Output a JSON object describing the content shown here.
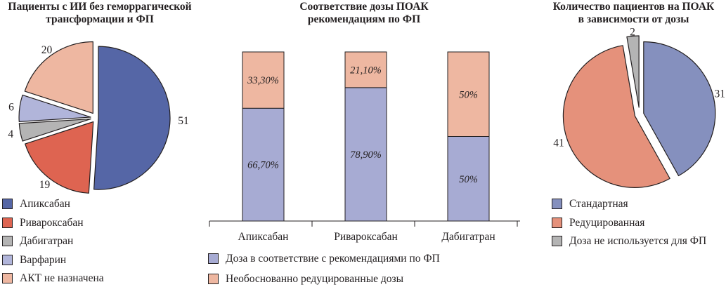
{
  "chart_data": [
    {
      "type": "pie",
      "title": [
        "Пациенты с ИИ без геморрагической",
        "трансформации и ФП"
      ],
      "categories": [
        "Апиксабан",
        "Ривароксабан",
        "Дабигатран",
        "Варфарин",
        "АКТ не назначена"
      ],
      "values": [
        51,
        19,
        4,
        6,
        20
      ],
      "labels": [
        "51",
        "19",
        "4",
        "6",
        "20"
      ],
      "colors": [
        "#5566a6",
        "#de6451",
        "#b4b4b4",
        "#b1b5da",
        "#eeb7a1"
      ],
      "legend": "bottom-left"
    },
    {
      "type": "bar",
      "stacked": true,
      "title": [
        "Соответствие дозы ПОАК",
        "рекомендациям по ФП"
      ],
      "categories": [
        "Апиксабан",
        "Ривароксабан",
        "Дабигатран"
      ],
      "ylim": [
        0,
        100
      ],
      "series": [
        {
          "name": "Доза в соответствие с рекомендациями по ФП",
          "values": [
            66.7,
            78.9,
            50
          ],
          "labels": [
            "66,70%",
            "78,90%",
            "50%"
          ],
          "color": "#a7abd3"
        },
        {
          "name": "Необоснованно редуцированные дозы",
          "values": [
            33.3,
            21.1,
            50
          ],
          "labels": [
            "33,30%",
            "21,10%",
            "50%"
          ],
          "color": "#eeb7a1"
        }
      ],
      "legend": "bottom"
    },
    {
      "type": "pie",
      "title": [
        "Количество пациентов на ПОАК",
        "в зависимости от дозы"
      ],
      "categories": [
        "Стандартная",
        "Редуцированная",
        "Доза не используется для ФП"
      ],
      "values": [
        31,
        41,
        2
      ],
      "labels": [
        "31",
        "41",
        "2"
      ],
      "colors": [
        "#8590be",
        "#e5917b",
        "#b4b4b4"
      ],
      "legend": "bottom-left"
    }
  ]
}
